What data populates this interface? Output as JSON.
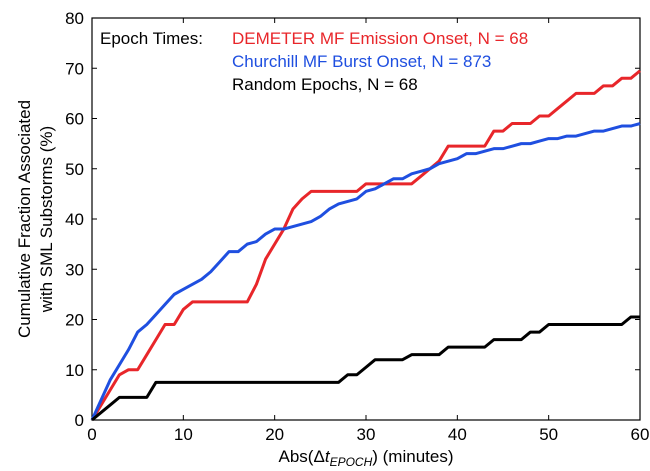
{
  "chart_data": {
    "type": "line",
    "ylabel": [
      "Cumulative Fraction Associated",
      "with SML Substorms (%)"
    ],
    "xlabel_parts": [
      "Abs(Δ",
      "t",
      "EPOCH",
      ") (minutes)"
    ],
    "legend_title": "Epoch Times:",
    "xlim": [
      0,
      60
    ],
    "xticks": [
      0,
      10,
      20,
      30,
      40,
      50,
      60
    ],
    "ylim": [
      0,
      80
    ],
    "yticks": [
      0,
      10,
      20,
      30,
      40,
      50,
      60,
      70,
      80
    ],
    "legend": "upper left",
    "series": [
      {
        "name": "DEMETER MF Emission Onset, N = 68",
        "color": "#e8262a",
        "x": [
          0,
          1,
          2,
          3,
          4,
          5,
          6,
          7,
          8,
          9,
          10,
          11,
          12,
          17,
          18,
          19,
          20,
          21,
          22,
          23,
          24,
          29,
          30,
          35,
          36,
          37,
          38,
          39,
          43,
          44,
          45,
          46,
          48,
          49,
          50,
          51,
          52,
          53,
          55,
          56,
          57,
          58,
          59,
          60
        ],
        "values": [
          0,
          3,
          6,
          9,
          10,
          10,
          13,
          16,
          19,
          19,
          22,
          23.5,
          23.5,
          23.5,
          27,
          32,
          35,
          38,
          42,
          44,
          45.5,
          45.5,
          47,
          47,
          48.5,
          50,
          51.5,
          54.5,
          54.5,
          57.5,
          57.5,
          59,
          59,
          60.5,
          60.5,
          62,
          63.5,
          65,
          65,
          66.5,
          66.5,
          68,
          68,
          69.5
        ]
      },
      {
        "name": "Churchill MF Burst Onset, N = 873",
        "color": "#1f4fe0",
        "x": [
          0,
          1,
          2,
          3,
          4,
          5,
          6,
          7,
          8,
          9,
          10,
          11,
          12,
          13,
          14,
          15,
          16,
          17,
          18,
          19,
          20,
          21,
          22,
          23,
          24,
          25,
          26,
          27,
          28,
          29,
          30,
          31,
          32,
          33,
          34,
          35,
          36,
          37,
          38,
          39,
          40,
          41,
          42,
          43,
          44,
          45,
          46,
          47,
          48,
          49,
          50,
          51,
          52,
          53,
          54,
          55,
          56,
          57,
          58,
          59,
          60
        ],
        "values": [
          0,
          4,
          8,
          11,
          14,
          17.5,
          19,
          21,
          23,
          25,
          26,
          27,
          28,
          29.5,
          31.5,
          33.5,
          33.5,
          35,
          35.5,
          37,
          38,
          38,
          38.5,
          39,
          39.5,
          40.5,
          42,
          43,
          43.5,
          44,
          45.5,
          46,
          47,
          48,
          48,
          49,
          49.5,
          50,
          51,
          51.5,
          52,
          53,
          53,
          53.5,
          54,
          54,
          54.5,
          55,
          55,
          55.5,
          56,
          56,
          56.5,
          56.5,
          57,
          57.5,
          57.5,
          58,
          58.5,
          58.5,
          59
        ]
      },
      {
        "name": "Random Epochs, N = 68",
        "color": "#000000",
        "x": [
          0,
          1,
          2,
          3,
          6,
          7,
          27,
          28,
          29,
          30,
          31,
          34,
          35,
          38,
          39,
          43,
          44,
          47,
          48,
          49,
          50,
          58,
          59,
          60
        ],
        "values": [
          0,
          1.5,
          3,
          4.5,
          4.5,
          7.5,
          7.5,
          9,
          9,
          10.5,
          12,
          12,
          13,
          13,
          14.5,
          14.5,
          16,
          16,
          17.5,
          17.5,
          19,
          19,
          20.5,
          20.5
        ]
      }
    ]
  }
}
